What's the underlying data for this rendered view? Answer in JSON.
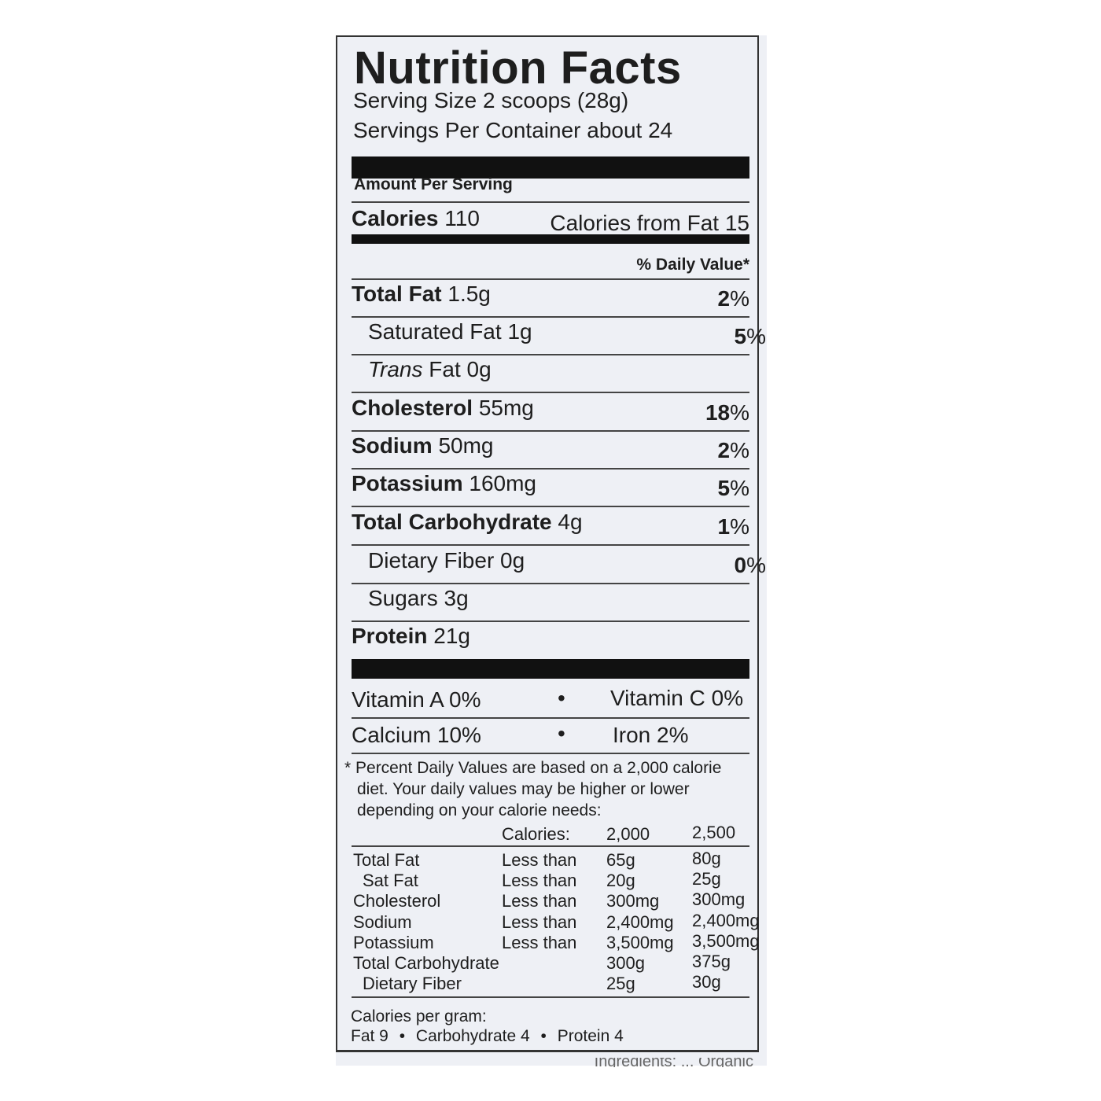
{
  "title": "Nutrition Facts",
  "serving_size": "Serving Size 2 scoops (28g)",
  "servings_per_container": "Servings Per Container about 24",
  "amount_per_serving": "Amount Per Serving",
  "calories": {
    "label": "Calories",
    "value": "110",
    "from_fat": "Calories from Fat 15"
  },
  "daily_value_header": "% Daily Value*",
  "nutrients": [
    {
      "name": "Total Fat",
      "amount": "1.5g",
      "dv": "2",
      "bold": true
    },
    {
      "name": "Saturated Fat",
      "amount": "1g",
      "dv": "5",
      "bold": false
    },
    {
      "name": "Trans",
      "suffix": "Fat 0g",
      "dv": "",
      "bold": false
    },
    {
      "name": "Cholesterol",
      "amount": "55mg",
      "dv": "18",
      "bold": true
    },
    {
      "name": "Sodium",
      "amount": "50mg",
      "dv": "2",
      "bold": true
    },
    {
      "name": "Potassium",
      "amount": "160mg",
      "dv": "5",
      "bold": true
    },
    {
      "name": "Total Carbohydrate",
      "amount": "4g",
      "dv": "1",
      "bold": true
    },
    {
      "name": "Dietary Fiber",
      "amount": "0g",
      "dv": "0",
      "bold": false
    },
    {
      "name": "Sugars",
      "amount": "3g",
      "dv": "",
      "bold": false
    },
    {
      "name": "Protein",
      "amount": "21g",
      "dv": "",
      "bold": true
    }
  ],
  "percent_sign": "%",
  "vitamins": [
    {
      "left": "Vitamin A 0%",
      "right": "Vitamin C 0%"
    },
    {
      "left": "Calcium 10%",
      "right": "Iron 2%"
    }
  ],
  "bullet": "•",
  "footnote": [
    "* Percent Daily Values are based on a 2,000 calorie",
    "diet. Your daily values may be higher or lower",
    "depending on your calorie needs:"
  ],
  "dv_table": {
    "header": [
      "Calories:",
      "2,000",
      "2,500"
    ],
    "rows": [
      [
        "Total Fat",
        "Less than",
        "65g",
        "80g"
      ],
      [
        " Sat Fat",
        "Less than",
        "20g",
        "25g"
      ],
      [
        "Cholesterol",
        "Less than",
        "300mg",
        "300mg"
      ],
      [
        "Sodium",
        "Less than",
        "2,400mg",
        "2,400mg"
      ],
      [
        "Potassium",
        "Less than",
        "3,500mg",
        "3,500mg"
      ],
      [
        "Total Carbohydrate",
        "",
        "300g",
        "375g"
      ],
      [
        " Dietary Fiber",
        "",
        "25g",
        "30g"
      ]
    ]
  },
  "calories_per_gram": {
    "label": "Calories per gram:",
    "fat": "Fat 9",
    "carb": "Carbohydrate 4",
    "protein": "Protein 4"
  },
  "cut_text": "Ingredients: ... Organic"
}
